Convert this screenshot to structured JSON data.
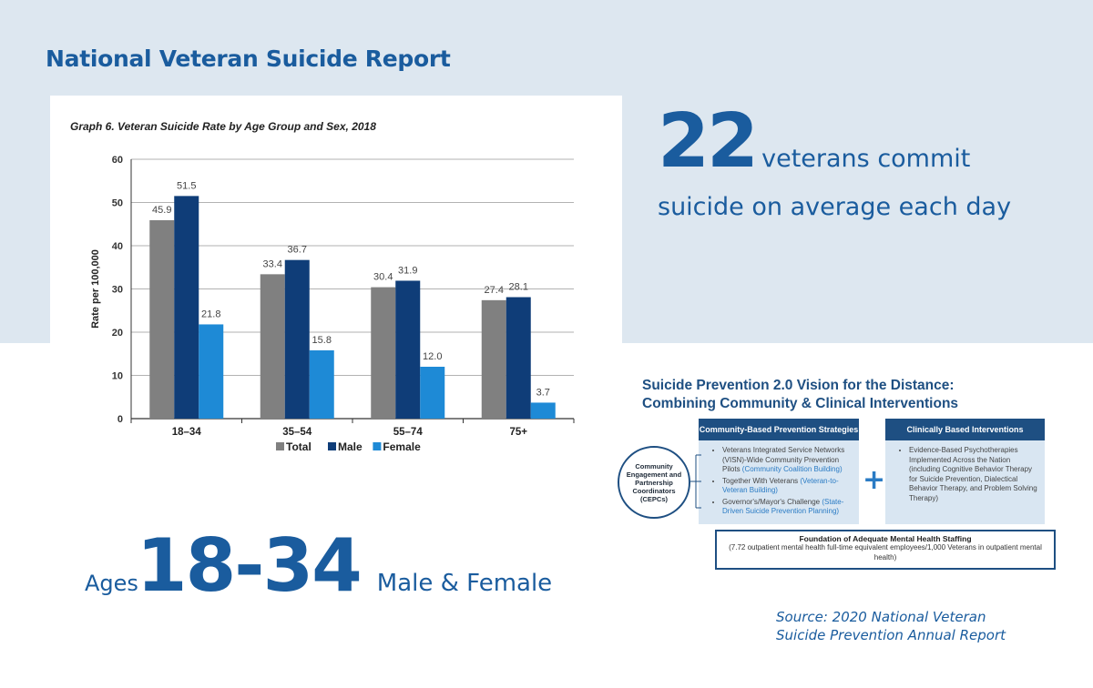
{
  "page": {
    "title": "National Veteran Suicide Report"
  },
  "stat": {
    "number": "22",
    "line1": "veterans commit",
    "line2": "suicide on average each day"
  },
  "ages": {
    "prefix": "Ages",
    "range": "18-34",
    "suffix": "Male & Female"
  },
  "vision": {
    "title_line1": "Suicide Prevention 2.0 Vision for the Distance:",
    "title_line2": "Combining Community & Clinical Interventions",
    "left_header": "Community-Based Prevention Strategies",
    "right_header": "Clinically  Based Interventions",
    "cepc": "Community Engagement and Partnership Coordinators (CEPCs)",
    "left_items": [
      {
        "text": "Veterans Integrated Service Networks (VISN)-Wide Community Prevention Pilots",
        "link": "(Community Coalition Building)"
      },
      {
        "text": "Together With Veterans",
        "link": "(Veteran-to-Veteran Building)"
      },
      {
        "text": "Governor's/Mayor's Challenge",
        "link": "(State-Driven Suicide Prevention Planning)"
      }
    ],
    "right_items": [
      "Evidence-Based Psychotherapies Implemented Across the Nation (including Cognitive Behavior Therapy for Suicide Prevention, Dialectical Behavior Therapy, and Problem Solving Therapy)"
    ],
    "plus": "+",
    "foundation_title": "Foundation of Adequate Mental Health Staffing",
    "foundation_text": "(7.72 outpatient mental health full-time equivalent employees/1,000 Veterans in outpatient mental health)"
  },
  "source": {
    "line1": "Source: 2020 National Veteran",
    "line2": "Suicide Prevention Annual Report"
  },
  "colors": {
    "brand_blue": "#1a5c9e",
    "band": "#dde7f0",
    "total": "#808080",
    "male": "#0f3d78",
    "female": "#1e8ad6"
  },
  "chart_data": {
    "type": "bar",
    "title": "Graph 6. Veteran Suicide Rate by Age Group and Sex, 2018",
    "categories": [
      "18–34",
      "35–54",
      "55–74",
      "75+"
    ],
    "series": [
      {
        "name": "Total",
        "values": [
          45.9,
          33.4,
          30.4,
          27.4
        ],
        "color": "#808080"
      },
      {
        "name": "Male",
        "values": [
          51.5,
          36.7,
          31.9,
          28.1
        ],
        "color": "#0f3d78"
      },
      {
        "name": "Female",
        "values": [
          21.8,
          15.8,
          12.0,
          3.7
        ],
        "color": "#1e8ad6"
      }
    ],
    "value_labels": [
      [
        "45.9",
        "33.4",
        "30.4",
        "27.4"
      ],
      [
        "51.5",
        "36.7",
        "31.9",
        "28.1"
      ],
      [
        "21.8",
        "15.8",
        "12.0",
        "3.7"
      ]
    ],
    "xlabel": "",
    "ylabel": "Rate per 100,000",
    "ylim": [
      0,
      60
    ],
    "yticks": [
      0,
      10,
      20,
      30,
      40,
      50,
      60
    ],
    "grid": true,
    "legend": "bottom-center"
  }
}
